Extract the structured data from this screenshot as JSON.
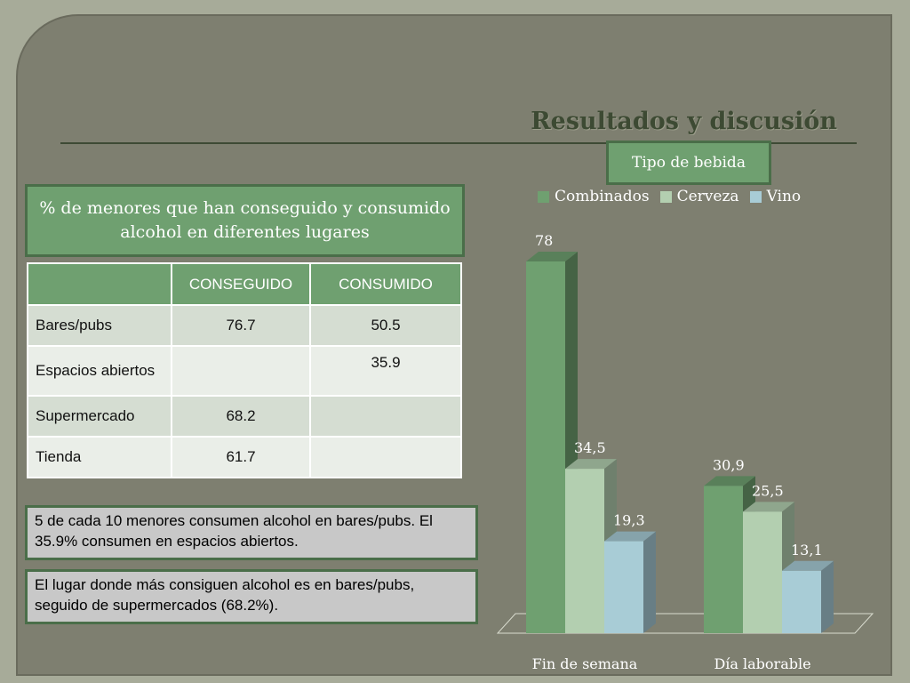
{
  "slide": {
    "title": "Resultados y discusión",
    "heading": "% de menores que han conseguido y consumido alcohol en diferentes lugares",
    "notes": [
      "5 de cada 10 menores consumen alcohol en bares/pubs. El 35.9% consumen en espacios abiertos.",
      "El lugar donde más consiguen alcohol es en bares/pubs, seguido de supermercados (68.2%)."
    ]
  },
  "table": {
    "headers": [
      "",
      "CONSEGUIDO",
      "CONSUMIDO"
    ],
    "rows": [
      {
        "place": "Bares/pubs",
        "conseguido": "76.7",
        "consumido": "50.5"
      },
      {
        "place": "Espacios abiertos",
        "conseguido": "",
        "consumido": "35.9"
      },
      {
        "place": "Supermercado",
        "conseguido": "68.2",
        "consumido": ""
      },
      {
        "place": "Tienda",
        "conseguido": "61.7",
        "consumido": ""
      }
    ]
  },
  "chart_data": {
    "type": "bar",
    "title": "Tipo de bebida",
    "categories": [
      "Fin de semana",
      "Día laborable"
    ],
    "series": [
      {
        "name": "Combinados",
        "values": [
          78,
          30.9
        ],
        "labels": [
          "78",
          "30,9"
        ],
        "color": "#6fa070"
      },
      {
        "name": "Cerveza",
        "values": [
          34.5,
          25.5
        ],
        "labels": [
          "34,5",
          "25,5"
        ],
        "color": "#b3cfb0"
      },
      {
        "name": "Vino",
        "values": [
          19.3,
          13.1
        ],
        "labels": [
          "19,3",
          "13,1"
        ],
        "color": "#a8ccd6"
      }
    ],
    "legend": "top",
    "grid": false
  }
}
